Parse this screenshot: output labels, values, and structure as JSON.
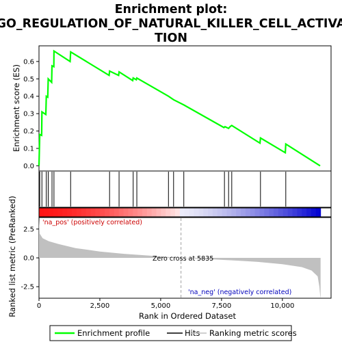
{
  "title_lines": [
    "Enrichment plot:",
    "GO_REGULATION_OF_NATURAL_KILLER_CELL_ACTIVA",
    "TION"
  ],
  "colors": {
    "enrichment_line": "#00ff00",
    "hits": "#000000",
    "pos_label": "#cc0000",
    "neg_label": "#0000bb",
    "metric_fill": "#c0c0c0",
    "zero_cross_line": "#a0a0a0"
  },
  "chart_data": [
    {
      "type": "line",
      "name": "enrichment-profile",
      "ylabel": "Enrichment score (ES)",
      "xlim": [
        0,
        12000
      ],
      "ylim": [
        -0.03,
        0.69
      ],
      "yticks": [
        "0.0",
        "0.1",
        "0.2",
        "0.3",
        "0.4",
        "0.5",
        "0.6"
      ],
      "grid": false,
      "series": [
        {
          "name": "Enrichment profile",
          "points": [
            [
              0,
              0.0
            ],
            [
              30,
              0.18
            ],
            [
              110,
              0.175
            ],
            [
              120,
              0.31
            ],
            [
              280,
              0.295
            ],
            [
              300,
              0.4
            ],
            [
              360,
              0.395
            ],
            [
              380,
              0.5
            ],
            [
              520,
              0.48
            ],
            [
              535,
              0.575
            ],
            [
              610,
              0.57
            ],
            [
              615,
              0.66
            ],
            [
              1280,
              0.6
            ],
            [
              1300,
              0.655
            ],
            [
              2880,
              0.52
            ],
            [
              2900,
              0.545
            ],
            [
              3270,
              0.52
            ],
            [
              3290,
              0.54
            ],
            [
              3850,
              0.49
            ],
            [
              3870,
              0.505
            ],
            [
              4000,
              0.495
            ],
            [
              4020,
              0.505
            ],
            [
              5320,
              0.4
            ],
            [
              5530,
              0.38
            ],
            [
              5950,
              0.35
            ],
            [
              7600,
              0.22
            ],
            [
              7640,
              0.225
            ],
            [
              7790,
              0.215
            ],
            [
              7850,
              0.225
            ],
            [
              7920,
              0.232
            ],
            [
              9080,
              0.13
            ],
            [
              9100,
              0.16
            ],
            [
              10120,
              0.075
            ],
            [
              10140,
              0.125
            ],
            [
              11550,
              0.0
            ]
          ]
        }
      ]
    },
    {
      "type": "scatter",
      "name": "hits",
      "hit_positions": [
        30,
        120,
        300,
        380,
        535,
        615,
        1300,
        2900,
        3290,
        3870,
        4020,
        5320,
        5530,
        5950,
        7620,
        7790,
        7920,
        9100,
        10140
      ]
    },
    {
      "type": "area",
      "name": "ranking-metric",
      "xlabel": "Rank in Ordered Dataset",
      "ylabel": "Ranked list metric (PreRanked)",
      "xlim": [
        0,
        12000
      ],
      "ylim": [
        -3.5,
        3.5
      ],
      "yticks": [
        "2.5",
        "0.0",
        "-2.5"
      ],
      "xticks": [
        "0",
        "2,500",
        "5,000",
        "7,500",
        "10,000"
      ],
      "series": [
        {
          "name": "Ranking metric scores",
          "points": [
            [
              0,
              3.3
            ],
            [
              30,
              2.1
            ],
            [
              150,
              1.7
            ],
            [
              400,
              1.45
            ],
            [
              800,
              1.2
            ],
            [
              1500,
              0.85
            ],
            [
              2500,
              0.55
            ],
            [
              3500,
              0.35
            ],
            [
              4500,
              0.2
            ],
            [
              5835,
              0.0
            ],
            [
              7000,
              -0.12
            ],
            [
              8000,
              -0.22
            ],
            [
              9000,
              -0.35
            ],
            [
              10000,
              -0.55
            ],
            [
              10800,
              -0.8
            ],
            [
              11200,
              -1.1
            ],
            [
              11450,
              -1.6
            ],
            [
              11520,
              -2.5
            ],
            [
              11560,
              -3.4
            ],
            [
              11570,
              -3.5
            ]
          ]
        }
      ],
      "annotations": {
        "pos_label": "'na_pos' (positively correlated)",
        "neg_label": "'na_neg' (negatively correlated)",
        "zero_cross_text": "Zero cross at 5835",
        "zero_cross": 5835
      }
    }
  ],
  "legend": {
    "items": [
      "Enrichment profile",
      "Hits",
      "Ranking metric scores"
    ]
  }
}
